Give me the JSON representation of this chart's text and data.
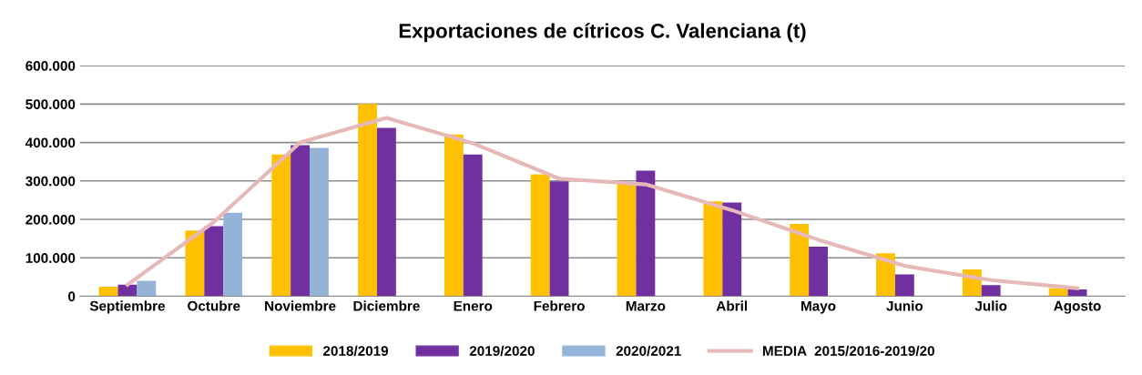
{
  "chart_data": {
    "type": "bar",
    "title": "Exportaciones de cítricos C. Valenciana (t)",
    "categories": [
      "Septiembre",
      "Octubre",
      "Noviembre",
      "Diciembre",
      "Enero",
      "Febrero",
      "Marzo",
      "Abril",
      "Mayo",
      "Junio",
      "Julio",
      "Agosto"
    ],
    "series": [
      {
        "name": "2018/2019",
        "color": "#ffc000",
        "values": [
          25000,
          171000,
          369000,
          500000,
          421000,
          317000,
          296000,
          247000,
          188000,
          112000,
          70000,
          21000
        ]
      },
      {
        "name": "2019/2020",
        "color": "#7030a0",
        "values": [
          30000,
          182000,
          393000,
          438000,
          369000,
          299000,
          327000,
          244000,
          129000,
          57000,
          29000,
          18000
        ]
      },
      {
        "name": "2020/2021",
        "color": "#95b3d7",
        "values": [
          40000,
          217000,
          386000,
          null,
          null,
          null,
          null,
          null,
          null,
          null,
          null,
          null
        ]
      },
      {
        "name": "MEDIA  2015/2016-2019/20",
        "color": "#e6b9b8",
        "type": "line",
        "values": [
          30000,
          193000,
          400000,
          464000,
          398000,
          306000,
          291000,
          224000,
          147000,
          79000,
          42000,
          21000
        ]
      }
    ],
    "ylim": [
      0,
      600000
    ],
    "yticks": [
      {
        "value": 0,
        "label": "0"
      },
      {
        "value": 100000,
        "label": "100.000"
      },
      {
        "value": 200000,
        "label": "200.000"
      },
      {
        "value": 300000,
        "label": "300.000"
      },
      {
        "value": 400000,
        "label": "400.000"
      },
      {
        "value": 500000,
        "label": "500.000"
      },
      {
        "value": 600000,
        "label": "600.000"
      }
    ],
    "grid": "y",
    "legend": "bottom"
  }
}
